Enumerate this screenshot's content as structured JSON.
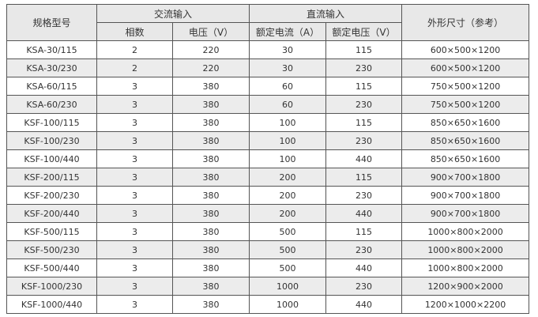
{
  "header": {
    "model": "规格型号",
    "ac_input": "交流输入",
    "dc_input": "直流输入",
    "dimensions": "外形尺寸（参考）",
    "ac_phases": "相数",
    "ac_voltage": "电压（V）",
    "dc_current": "额定电流（A）",
    "dc_voltage": "额定电压（V）"
  },
  "rows": [
    [
      "KSA-30/115",
      "2",
      "220",
      "30",
      "115",
      "600×500×1200"
    ],
    [
      "KSA-30/230",
      "2",
      "220",
      "30",
      "230",
      "600×500×1200"
    ],
    [
      "KSA-60/115",
      "3",
      "380",
      "60",
      "115",
      "750×500×1200"
    ],
    [
      "KSA-60/230",
      "3",
      "380",
      "60",
      "230",
      "750×500×1200"
    ],
    [
      "KSF-100/115",
      "3",
      "380",
      "100",
      "115",
      "850×650×1600"
    ],
    [
      "KSF-100/230",
      "3",
      "380",
      "100",
      "230",
      "850×650×1600"
    ],
    [
      "KSF-100/440",
      "3",
      "380",
      "100",
      "440",
      "850×650×1600"
    ],
    [
      "KSF-200/115",
      "3",
      "380",
      "200",
      "115",
      "900×700×1800"
    ],
    [
      "KSF-200/230",
      "3",
      "380",
      "200",
      "230",
      "900×700×1800"
    ],
    [
      "KSF-200/440",
      "3",
      "380",
      "200",
      "440",
      "900×700×1800"
    ],
    [
      "KSF-500/115",
      "3",
      "380",
      "500",
      "115",
      "1000×800×2000"
    ],
    [
      "KSF-500/230",
      "3",
      "380",
      "500",
      "230",
      "1000×800×2000"
    ],
    [
      "KSF-500/440",
      "3",
      "380",
      "500",
      "440",
      "1000×800×2000"
    ],
    [
      "KSF-1000/230",
      "3",
      "380",
      "1000",
      "230",
      "1200×900×2000"
    ],
    [
      "KSF-1000/440",
      "3",
      "380",
      "1000",
      "440",
      "1200×1000×2200"
    ]
  ]
}
